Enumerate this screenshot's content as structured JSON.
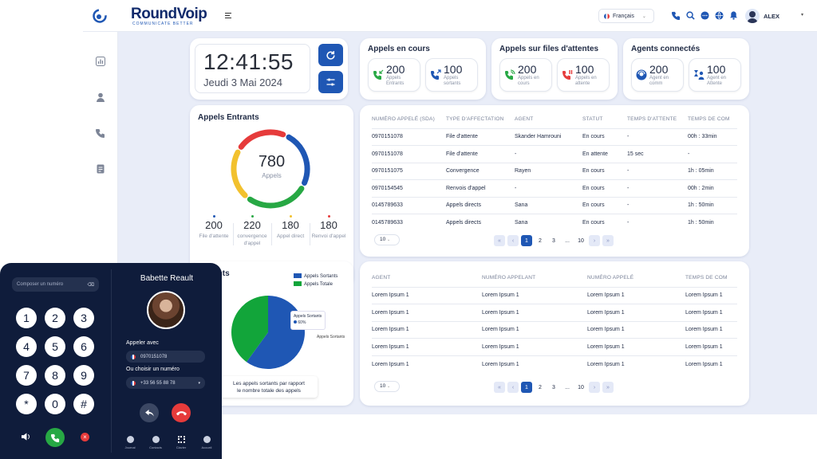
{
  "app": {
    "brand": "RoundVoip",
    "tagline": "COMMUNICATE BETTER"
  },
  "topbar": {
    "language": "Français",
    "user": "ALEX"
  },
  "clock": {
    "time": "12:41:55",
    "date": "Jeudi 3 Mai 2024"
  },
  "calls_in_progress": {
    "title": "Appels en cours",
    "incoming": {
      "value": "200",
      "label1": "Appels",
      "label2": "Entrants"
    },
    "outgoing": {
      "value": "100",
      "label1": "Appels",
      "label2": "sortants"
    }
  },
  "queue_calls": {
    "title": "Appels sur files d'attentes",
    "in_progress": {
      "value": "200",
      "label1": "Appels en",
      "label2": "cours"
    },
    "waiting": {
      "value": "100",
      "label1": "Appels en",
      "label2": "attente"
    }
  },
  "agents": {
    "title": "Agents connectés",
    "in_call": {
      "value": "200",
      "label1": "Agent en",
      "label2": "comm"
    },
    "waiting": {
      "value": "100",
      "label1": "Agent en",
      "label2": "Attente"
    }
  },
  "incoming": {
    "title": "Appels Entrants",
    "total": "780",
    "total_label": "Appels",
    "stats": [
      {
        "value": "200",
        "label": "File d'attente",
        "color": "#1f57b4"
      },
      {
        "value": "220",
        "label": "convergence d'appel",
        "color": "#27a844"
      },
      {
        "value": "180",
        "label": "Appel direct",
        "color": "#f2c12e"
      },
      {
        "value": "180",
        "label": "Renvoi d'appel",
        "color": "#e63b3b"
      }
    ]
  },
  "table1": {
    "headers": [
      "NUMÉRO APPELÉ (SDA)",
      "TYPE D'AFFECTATION",
      "AGENT",
      "STATUT",
      "TEMPS D'ATTENTE",
      "TEMPS DE COM"
    ],
    "rows": [
      [
        "0970151078",
        "File d'attente",
        "Skander Hamrouni",
        "En cours",
        "-",
        "00h : 33min"
      ],
      [
        "0970151078",
        "File d'attente",
        "-",
        "En attente",
        "15 sec",
        "-"
      ],
      [
        "0970151075",
        "Convergence",
        "Rayen",
        "En cours",
        "-",
        "1h : 05min"
      ],
      [
        "0970154545",
        "Renvois d'appel",
        "-",
        "En cours",
        "-",
        "00h : 2min"
      ],
      [
        "0145789633",
        "Appels directs",
        "Sana",
        "En cours",
        "-",
        "1h : 50min"
      ],
      [
        "0145789633",
        "Appels directs",
        "Sana",
        "En cours",
        "-",
        "1h : 50min"
      ]
    ],
    "page_size": "10",
    "pages": [
      "1",
      "2",
      "3",
      "...",
      "10"
    ]
  },
  "outgoing": {
    "title": "ls Sortants",
    "legend": [
      "Appels Sortants",
      "Appels Totale"
    ],
    "tooltip_title": "Appels Sortants",
    "tooltip_value": "60%",
    "slice_label": "Appels Sortants",
    "caption1": "Les appels sortants par rapport",
    "caption2": "le nombre totale des appels"
  },
  "chart_data": {
    "type": "pie",
    "categories": [
      "Appels Sortants",
      "Appels Totale"
    ],
    "values": [
      60,
      40
    ],
    "colors": [
      "#1f57b4",
      "#12a53a"
    ]
  },
  "table2": {
    "headers": [
      "AGENT",
      "NUMÉRO APPELANT",
      "NUMÉRO APPELÉ",
      "TEMPS DE COM"
    ],
    "rows": [
      [
        "Lorem Ipsum 1",
        "Lorem Ipsum 1",
        "Lorem Ipsum 1",
        "Lorem Ipsum 1"
      ],
      [
        "Lorem Ipsum 1",
        "Lorem Ipsum 1",
        "Lorem Ipsum 1",
        "Lorem Ipsum 1"
      ],
      [
        "Lorem Ipsum 1",
        "Lorem Ipsum 1",
        "Lorem Ipsum 1",
        "Lorem Ipsum 1"
      ],
      [
        "Lorem Ipsum 1",
        "Lorem Ipsum 1",
        "Lorem Ipsum 1",
        "Lorem Ipsum 1"
      ],
      [
        "Lorem Ipsum 1",
        "Lorem Ipsum 1",
        "Lorem Ipsum 1",
        "Lorem Ipsum 1"
      ]
    ],
    "page_size": "10",
    "pages": [
      "1",
      "2",
      "3",
      "...",
      "10"
    ]
  },
  "phone": {
    "placeholder": "Composer un numéro",
    "contact": "Babette Reault",
    "call_with": "Appeler avec",
    "call_with_number": "0970151078",
    "or_choose": "Ou choisir un numéro",
    "chosen_number": "+33 56 55 88 78",
    "keys": [
      "1",
      "2",
      "3",
      "4",
      "5",
      "6",
      "7",
      "8",
      "9",
      "*",
      "0",
      "#"
    ],
    "nav": [
      "Journal",
      "Contacts",
      "Clavier",
      "Accueil"
    ]
  }
}
